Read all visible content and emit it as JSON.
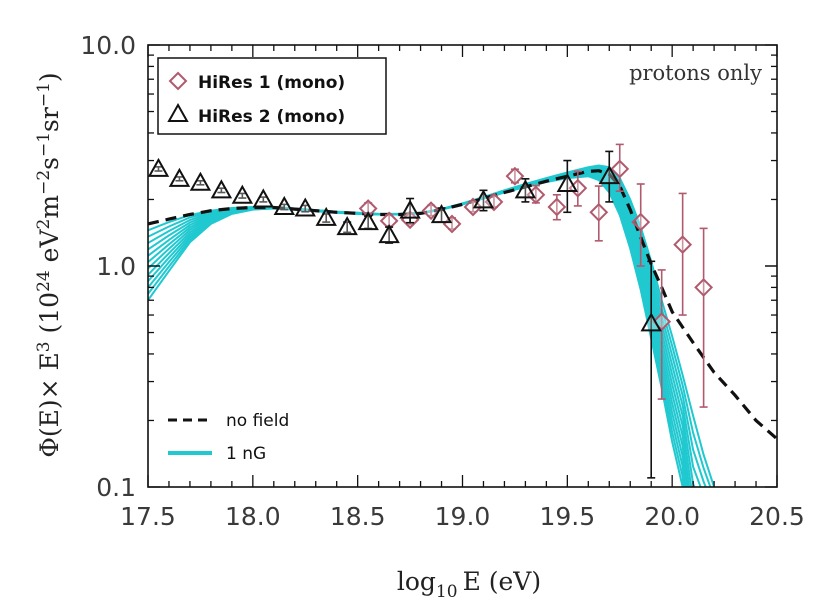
{
  "chart_data": {
    "type": "scatter",
    "xlabel_main": "log",
    "xlabel_sub": "10",
    "xlabel_tail": "E (eV)",
    "ylabel_prefix": "Φ(E)× E",
    "ylabel_sup1": "3",
    "ylabel_mid": " (10",
    "ylabel_sup2": "24",
    "ylabel_mid2": " eV",
    "ylabel_sup3": "2",
    "ylabel_mid3": "m",
    "ylabel_sup4": "−2",
    "ylabel_mid4": "s",
    "ylabel_sup5": "−1",
    "ylabel_mid5": "sr",
    "ylabel_sup6": "−1",
    "ylabel_end": ")",
    "xlim": [
      17.5,
      20.5
    ],
    "ylim": [
      0.1,
      10.0
    ],
    "yscale": "log",
    "x_ticks": [
      17.5,
      17.6,
      17.7,
      17.8,
      17.9,
      18.0,
      18.1,
      18.2,
      18.3,
      18.4,
      18.5,
      18.6,
      18.7,
      18.8,
      18.9,
      19.0,
      19.1,
      19.2,
      19.3,
      19.4,
      19.5,
      19.6,
      19.7,
      19.8,
      19.9,
      20.0,
      20.1,
      20.2,
      20.3,
      20.4,
      20.5
    ],
    "x_tick_labels": [
      "17.5",
      "18.0",
      "18.5",
      "19.0",
      "19.5",
      "20.0",
      "20.5"
    ],
    "y_tick_labels": [
      "0.1",
      "1.0",
      "10.0"
    ],
    "annotation": "protons only",
    "legend_top": [
      "HiRes 1 (mono)",
      "HiRes 2 (mono)"
    ],
    "legend_bottom": [
      "no field",
      "1 nG"
    ],
    "colors": {
      "hires1": "#b05a6e",
      "hires2": "#111111",
      "nofield": "#111111",
      "cyan": "#20c8d0"
    },
    "series": [
      {
        "name": "HiRes 1 (mono)",
        "marker": "diamond",
        "points": [
          {
            "x": 18.55,
            "y": 1.82,
            "lo": 1.72,
            "hi": 1.93
          },
          {
            "x": 18.65,
            "y": 1.6,
            "lo": 1.52,
            "hi": 1.7
          },
          {
            "x": 18.75,
            "y": 1.62,
            "lo": 1.54,
            "hi": 1.71
          },
          {
            "x": 18.85,
            "y": 1.78,
            "lo": 1.69,
            "hi": 1.88
          },
          {
            "x": 18.95,
            "y": 1.55,
            "lo": 1.47,
            "hi": 1.65
          },
          {
            "x": 19.05,
            "y": 1.85,
            "lo": 1.76,
            "hi": 1.95
          },
          {
            "x": 19.15,
            "y": 1.95,
            "lo": 1.85,
            "hi": 2.07
          },
          {
            "x": 19.25,
            "y": 2.55,
            "lo": 2.38,
            "hi": 2.74
          },
          {
            "x": 19.35,
            "y": 2.1,
            "lo": 1.93,
            "hi": 2.31
          },
          {
            "x": 19.45,
            "y": 1.85,
            "lo": 1.62,
            "hi": 2.1
          },
          {
            "x": 19.55,
            "y": 2.25,
            "lo": 1.87,
            "hi": 2.68
          },
          {
            "x": 19.65,
            "y": 1.75,
            "lo": 1.3,
            "hi": 2.3
          },
          {
            "x": 19.75,
            "y": 2.75,
            "lo": 2.18,
            "hi": 3.55
          },
          {
            "x": 19.85,
            "y": 1.58,
            "lo": 1.0,
            "hi": 2.35
          },
          {
            "x": 19.95,
            "y": 0.56,
            "lo": 0.25,
            "hi": 0.96
          },
          {
            "x": 20.05,
            "y": 1.25,
            "lo": 0.6,
            "hi": 2.13
          },
          {
            "x": 20.15,
            "y": 0.8,
            "lo": 0.23,
            "hi": 1.48
          }
        ]
      },
      {
        "name": "HiRes 2 (mono)",
        "marker": "triangle",
        "points": [
          {
            "x": 17.55,
            "y": 2.75,
            "lo": 2.69,
            "hi": 2.81
          },
          {
            "x": 17.65,
            "y": 2.48,
            "lo": 2.43,
            "hi": 2.53
          },
          {
            "x": 17.75,
            "y": 2.38,
            "lo": 2.33,
            "hi": 2.43
          },
          {
            "x": 17.85,
            "y": 2.2,
            "lo": 2.15,
            "hi": 2.25
          },
          {
            "x": 17.95,
            "y": 2.08,
            "lo": 2.03,
            "hi": 2.13
          },
          {
            "x": 18.05,
            "y": 2.0,
            "lo": 1.95,
            "hi": 2.05
          },
          {
            "x": 18.15,
            "y": 1.85,
            "lo": 1.8,
            "hi": 1.9
          },
          {
            "x": 18.25,
            "y": 1.82,
            "lo": 1.76,
            "hi": 1.88
          },
          {
            "x": 18.35,
            "y": 1.65,
            "lo": 1.58,
            "hi": 1.72
          },
          {
            "x": 18.45,
            "y": 1.5,
            "lo": 1.42,
            "hi": 1.58
          },
          {
            "x": 18.55,
            "y": 1.58,
            "lo": 1.48,
            "hi": 1.68
          },
          {
            "x": 18.65,
            "y": 1.38,
            "lo": 1.27,
            "hi": 1.5
          },
          {
            "x": 18.75,
            "y": 1.78,
            "lo": 1.57,
            "hi": 2.02
          },
          {
            "x": 18.9,
            "y": 1.7,
            "lo": 1.58,
            "hi": 1.83
          },
          {
            "x": 19.1,
            "y": 1.98,
            "lo": 1.78,
            "hi": 2.2
          },
          {
            "x": 19.3,
            "y": 2.2,
            "lo": 1.95,
            "hi": 2.48
          },
          {
            "x": 19.5,
            "y": 2.35,
            "lo": 1.75,
            "hi": 3.0
          },
          {
            "x": 19.7,
            "y": 2.55,
            "lo": 1.95,
            "hi": 3.3
          },
          {
            "x": 19.9,
            "y": 0.55,
            "lo": 0.11,
            "hi": 1.05
          }
        ]
      }
    ],
    "lines": [
      {
        "name": "no field",
        "style": "dashed",
        "points": [
          [
            17.5,
            1.55
          ],
          [
            17.6,
            1.63
          ],
          [
            17.7,
            1.71
          ],
          [
            17.8,
            1.78
          ],
          [
            17.9,
            1.82
          ],
          [
            18.0,
            1.84
          ],
          [
            18.1,
            1.84
          ],
          [
            18.2,
            1.81
          ],
          [
            18.3,
            1.78
          ],
          [
            18.4,
            1.75
          ],
          [
            18.5,
            1.73
          ],
          [
            18.6,
            1.71
          ],
          [
            18.7,
            1.71
          ],
          [
            18.8,
            1.73
          ],
          [
            18.9,
            1.8
          ],
          [
            19.0,
            1.9
          ],
          [
            19.1,
            2.02
          ],
          [
            19.2,
            2.15
          ],
          [
            19.3,
            2.28
          ],
          [
            19.4,
            2.42
          ],
          [
            19.5,
            2.55
          ],
          [
            19.6,
            2.68
          ],
          [
            19.65,
            2.7
          ],
          [
            19.7,
            2.6
          ],
          [
            19.75,
            2.3
          ],
          [
            19.8,
            1.8
          ],
          [
            19.85,
            1.35
          ],
          [
            19.9,
            1.02
          ],
          [
            19.95,
            0.8
          ],
          [
            20.0,
            0.62
          ],
          [
            20.1,
            0.45
          ],
          [
            20.2,
            0.33
          ],
          [
            20.3,
            0.26
          ],
          [
            20.4,
            0.2
          ],
          [
            20.5,
            0.165
          ]
        ]
      },
      {
        "name": "1 nG",
        "style": "solid",
        "envelope_lower": [
          [
            17.5,
            0.7
          ],
          [
            17.6,
            0.95
          ],
          [
            17.7,
            1.28
          ],
          [
            17.8,
            1.55
          ],
          [
            17.9,
            1.72
          ],
          [
            18.0,
            1.8
          ],
          [
            18.1,
            1.82
          ],
          [
            18.2,
            1.8
          ],
          [
            18.3,
            1.77
          ],
          [
            18.4,
            1.74
          ],
          [
            18.5,
            1.72
          ],
          [
            18.6,
            1.71
          ],
          [
            18.7,
            1.71
          ],
          [
            18.8,
            1.73
          ],
          [
            18.9,
            1.8
          ],
          [
            19.0,
            1.9
          ],
          [
            19.1,
            2.02
          ],
          [
            19.2,
            2.15
          ],
          [
            19.3,
            2.28
          ],
          [
            19.4,
            2.4
          ],
          [
            19.5,
            2.5
          ],
          [
            19.6,
            2.55
          ],
          [
            19.65,
            2.45
          ],
          [
            19.7,
            2.15
          ],
          [
            19.75,
            1.7
          ],
          [
            19.8,
            1.2
          ],
          [
            19.85,
            0.78
          ],
          [
            19.9,
            0.47
          ],
          [
            19.95,
            0.28
          ],
          [
            20.0,
            0.16
          ],
          [
            20.05,
            0.1
          ]
        ],
        "envelope_upper": [
          [
            17.5,
            1.45
          ],
          [
            17.6,
            1.58
          ],
          [
            17.7,
            1.7
          ],
          [
            17.8,
            1.78
          ],
          [
            17.9,
            1.83
          ],
          [
            18.0,
            1.85
          ],
          [
            18.1,
            1.85
          ],
          [
            18.2,
            1.82
          ],
          [
            18.3,
            1.79
          ],
          [
            18.4,
            1.76
          ],
          [
            18.5,
            1.74
          ],
          [
            18.6,
            1.72
          ],
          [
            18.7,
            1.72
          ],
          [
            18.8,
            1.74
          ],
          [
            18.9,
            1.81
          ],
          [
            19.0,
            1.92
          ],
          [
            19.1,
            2.05
          ],
          [
            19.2,
            2.2
          ],
          [
            19.3,
            2.35
          ],
          [
            19.4,
            2.5
          ],
          [
            19.5,
            2.65
          ],
          [
            19.6,
            2.8
          ],
          [
            19.65,
            2.85
          ],
          [
            19.7,
            2.8
          ],
          [
            19.75,
            2.5
          ],
          [
            19.8,
            2.0
          ],
          [
            19.85,
            1.5
          ],
          [
            19.9,
            1.05
          ],
          [
            19.95,
            0.7
          ],
          [
            20.0,
            0.48
          ],
          [
            20.05,
            0.32
          ],
          [
            20.1,
            0.21
          ],
          [
            20.15,
            0.14
          ],
          [
            20.2,
            0.1
          ]
        ],
        "curve_count": 12
      }
    ]
  }
}
